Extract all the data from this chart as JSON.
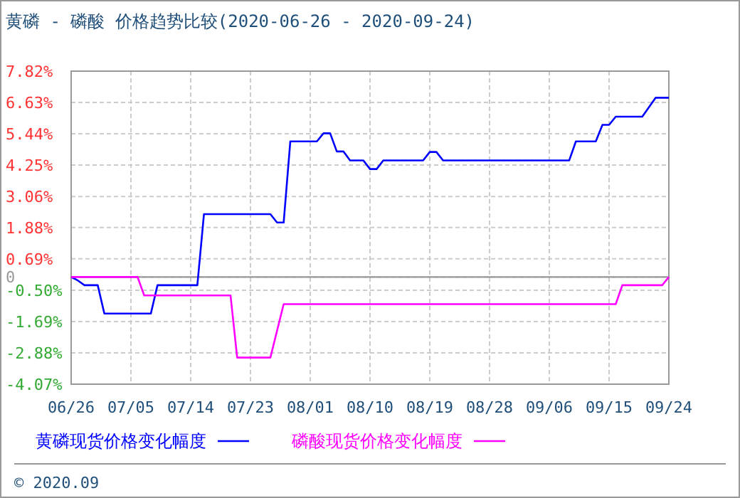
{
  "chart_data": {
    "type": "line",
    "title": "黄磷 - 磷酸 价格趋势比较(2020-06-26 - 2020-09-24)",
    "xlim": [
      "--06-26",
      "--09-24"
    ],
    "xticks": [
      {
        "value": "--06-26",
        "label": "06/26"
      },
      {
        "value": "--07-05",
        "label": "07/05"
      },
      {
        "value": "--07-14",
        "label": "07/14"
      },
      {
        "value": "--07-23",
        "label": "07/23"
      },
      {
        "value": "--08-01",
        "label": "08/01"
      },
      {
        "value": "--08-10",
        "label": "08/10"
      },
      {
        "value": "--08-19",
        "label": "08/19"
      },
      {
        "value": "--08-28",
        "label": "08/28"
      },
      {
        "value": "--09-06",
        "label": "09/06"
      },
      {
        "value": "--09-15",
        "label": "09/15"
      },
      {
        "value": "--09-24",
        "label": "09/24"
      }
    ],
    "ylim": [
      -4.07,
      7.82
    ],
    "yticks": [
      {
        "value": 7.82,
        "label": "7.82%"
      },
      {
        "value": 6.63,
        "label": "6.63%"
      },
      {
        "value": 5.44,
        "label": "5.44%"
      },
      {
        "value": 4.25,
        "label": "4.25%"
      },
      {
        "value": 3.06,
        "label": "3.06%"
      },
      {
        "value": 1.88,
        "label": "1.88%"
      },
      {
        "value": 0.69,
        "label": "0.69%"
      },
      0,
      {
        "value": -0.5,
        "label": "-0.50%"
      },
      {
        "value": -1.69,
        "label": "-1.69%"
      },
      {
        "value": -2.88,
        "label": "-2.88%"
      },
      {
        "value": -4.07,
        "label": "-4.07%"
      }
    ],
    "grid": true,
    "legend": "bottom",
    "line_style": "solid",
    "marker": "none",
    "ref_lines": [
      {
        "axis": "y",
        "value": 0,
        "color": "#999999"
      }
    ],
    "annotations": [
      "© 2020.09"
    ],
    "series": [
      {
        "name": "黄磷现货价格变化幅度",
        "color": "#0000ff",
        "x": [
          "--06-26",
          "--06-27",
          "--06-28",
          "--06-30",
          "--07-01",
          "--07-08",
          "--07-09",
          "--07-15",
          "--07-16",
          "--07-26",
          "--07-27",
          "--07-28",
          "--07-29",
          "--08-02",
          "--08-03",
          "--08-04",
          "--08-05",
          "--08-06",
          "--08-07",
          "--08-09",
          "--08-10",
          "--08-11",
          "--08-12",
          "--08-18",
          "--08-19",
          "--08-20",
          "--08-21",
          "--09-09",
          "--09-10",
          "--09-13",
          "--09-14",
          "--09-15",
          "--09-16",
          "--09-20",
          "--09-22",
          "--09-24"
        ],
        "values": [
          0,
          -0.13,
          -0.31,
          -0.31,
          -1.39,
          -1.39,
          -0.31,
          -0.31,
          2.39,
          2.39,
          2.07,
          2.07,
          5.15,
          5.15,
          5.46,
          5.46,
          4.77,
          4.77,
          4.43,
          4.43,
          4.1,
          4.1,
          4.43,
          4.43,
          4.75,
          4.75,
          4.43,
          4.43,
          5.15,
          5.15,
          5.78,
          5.78,
          6.09,
          6.09,
          6.81,
          6.81
        ]
      },
      {
        "name": "磷酸现货价格变化幅度",
        "color": "#ff00ff",
        "x": [
          "--06-26",
          "--07-06",
          "--07-07",
          "--07-20",
          "--07-21",
          "--07-26",
          "--07-28",
          "--09-16",
          "--09-17",
          "--09-23",
          "--09-24"
        ],
        "values": [
          0,
          0,
          -0.7,
          -0.7,
          -3.06,
          -3.06,
          -1.03,
          -1.03,
          -0.31,
          -0.31,
          0
        ]
      }
    ]
  }
}
